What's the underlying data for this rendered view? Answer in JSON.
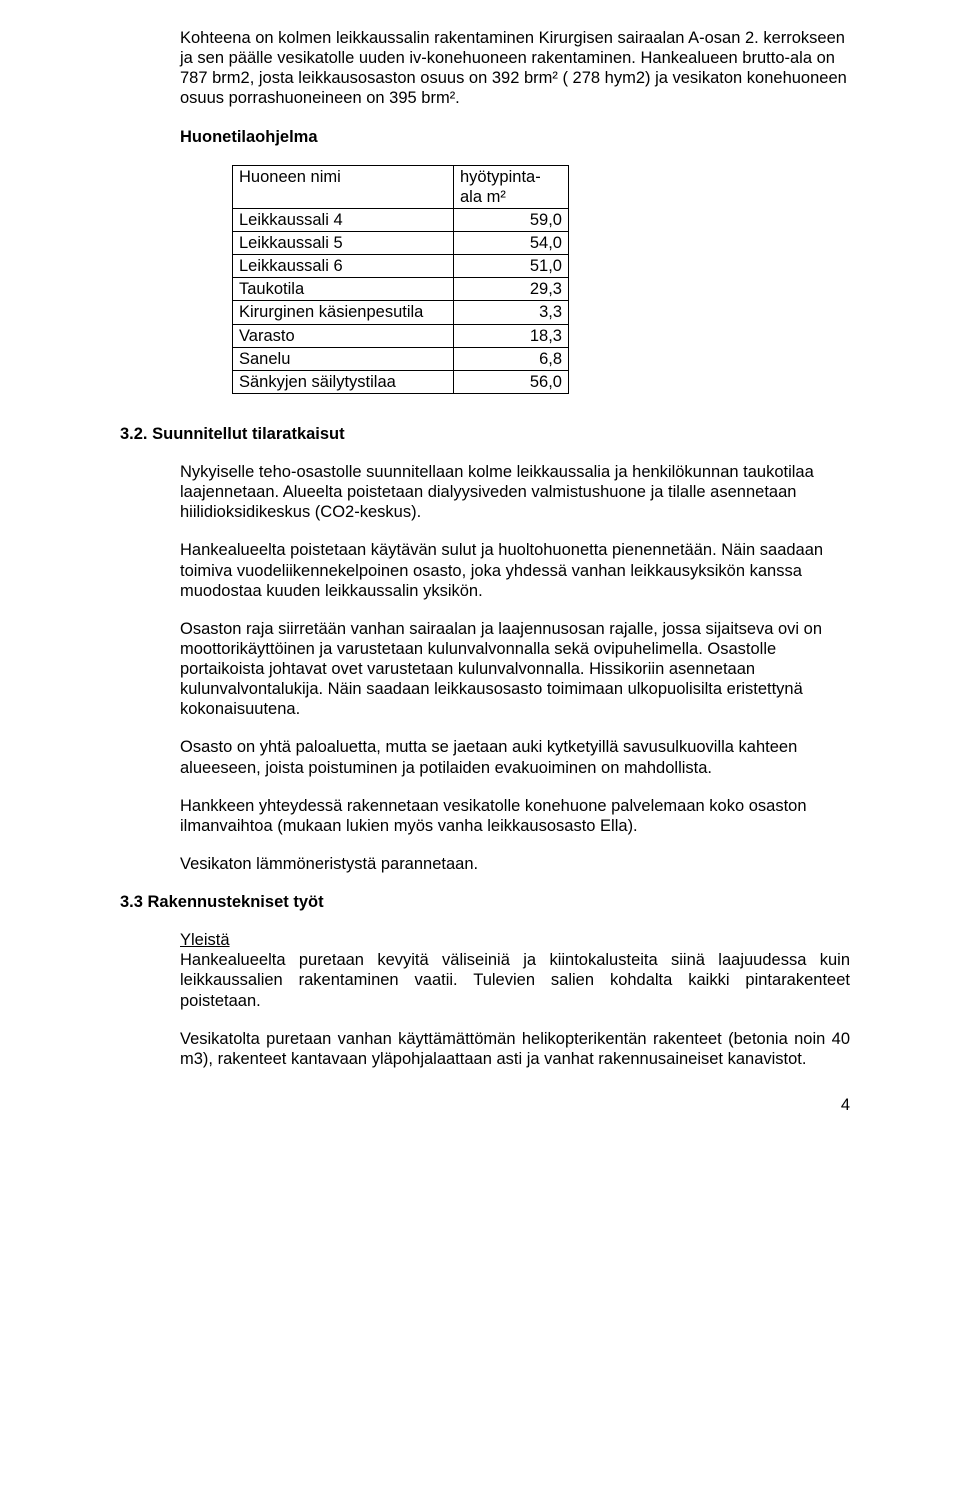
{
  "intro": {
    "p1": "Kohteena on kolmen leikkaussalin rakentaminen Kirurgisen sairaalan A-osan 2. kerrokseen ja sen päälle vesikatolle uuden iv-konehuoneen rakentaminen. Hankealueen brutto-ala on 787 brm2, josta leikkausosaston osuus on 392 brm² ( 278 hym2) ja  vesikaton konehuoneen osuus porrashuoneineen on 395 brm².",
    "heading": "Huonetilaohjelma"
  },
  "table": {
    "header_name": "Huoneen nimi",
    "header_val": "hyötypinta-ala m²",
    "rows": [
      {
        "name": "Leikkaussali 4",
        "val": "59,0"
      },
      {
        "name": "Leikkaussali 5",
        "val": "54,0"
      },
      {
        "name": "Leikkaussali 6",
        "val": "51,0"
      },
      {
        "name": "Taukotila",
        "val": "29,3"
      },
      {
        "name": "Kirurginen käsienpesutila",
        "val": "3,3"
      },
      {
        "name": "Varasto",
        "val": "18,3"
      },
      {
        "name": "Sanelu",
        "val": "6,8"
      },
      {
        "name": "Sänkyjen säilytystilaa",
        "val": "56,0"
      }
    ]
  },
  "sec32": {
    "heading": "3.2. Suunnitellut tilaratkaisut",
    "p1": "Nykyiselle teho-osastolle suunnitellaan kolme leikkaussalia ja henkilökunnan taukotilaa laajennetaan. Alueelta poistetaan dialyysiveden valmistushuone ja tilalle asennetaan hiilidioksidikeskus (CO2-keskus).",
    "p2": "Hankealueelta poistetaan käytävän sulut ja huoltohuonetta pienennetään. Näin saadaan toimiva vuodeliikennekelpoinen osasto, joka yhdessä vanhan leikkausyksikön kanssa muodostaa kuuden leikkaussalin yksikön.",
    "p3": "Osaston raja siirretään vanhan sairaalan ja laajennusosan rajalle, jossa sijaitseva ovi on moottorikäyttöinen ja varustetaan kulunvalvonnalla sekä ovipuhelimella. Osastolle portaikoista johtavat ovet varustetaan kulunvalvonnalla. Hissikoriin asennetaan kulunvalvontalukija. Näin saadaan leikkausosasto toimimaan ulkopuolisilta eristettynä kokonaisuutena.",
    "p4": "Osasto on yhtä paloaluetta, mutta se jaetaan auki kytketyillä savusulkuovilla kahteen alueeseen, joista poistuminen ja potilaiden evakuoiminen on mahdollista.",
    "p5": "Hankkeen yhteydessä rakennetaan vesikatolle konehuone palvelemaan koko osaston ilmanvaihtoa (mukaan lukien myös vanha leikkausosasto Ella).",
    "p6": "Vesikaton lämmöneristystä parannetaan."
  },
  "sec33": {
    "heading": "3.3 Rakennustekniset työt",
    "sub": "Yleistä",
    "p1": "Hankealueelta puretaan kevyitä väliseiniä ja kiintokalusteita siinä laajuudessa kuin leikkaussalien rakentaminen vaatii. Tulevien salien kohdalta kaikki pintarakenteet poistetaan.",
    "p2": "Vesikatolta puretaan vanhan käyttämättömän helikopterikentän rakenteet (betonia noin 40 m3), rakenteet kantavaan yläpohjalaattaan asti ja vanhat rakennusaineiset kanavistot."
  },
  "page_number": "4"
}
